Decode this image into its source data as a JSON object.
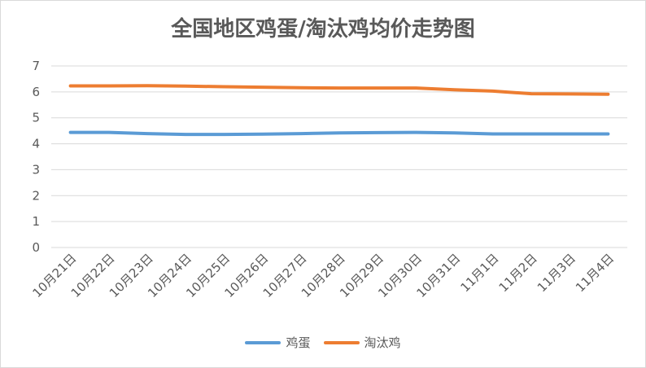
{
  "chart_data": {
    "type": "line",
    "title": "全国地区鸡蛋/淘汰鸡均价走势图",
    "categories": [
      "10月21日",
      "10月22日",
      "10月23日",
      "10月24日",
      "10月25日",
      "10月26日",
      "10月27日",
      "10月28日",
      "10月29日",
      "10月30日",
      "10月31日",
      "11月1日",
      "11月2日",
      "11月3日",
      "11月4日"
    ],
    "ylim": [
      0,
      7
    ],
    "yticks": [
      0,
      1,
      2,
      3,
      4,
      5,
      6,
      7
    ],
    "grid": true,
    "legend_position": "bottom",
    "series": [
      {
        "name": "鸡蛋",
        "color": "#5B9BD5",
        "values": [
          4.44,
          4.44,
          4.39,
          4.36,
          4.36,
          4.37,
          4.39,
          4.42,
          4.43,
          4.44,
          4.42,
          4.38,
          4.38,
          4.38,
          4.38
        ]
      },
      {
        "name": "淘汰鸡",
        "color": "#ED7D31",
        "values": [
          6.23,
          6.23,
          6.24,
          6.22,
          6.2,
          6.18,
          6.16,
          6.15,
          6.15,
          6.15,
          6.08,
          6.03,
          5.93,
          5.92,
          5.91
        ]
      }
    ]
  }
}
